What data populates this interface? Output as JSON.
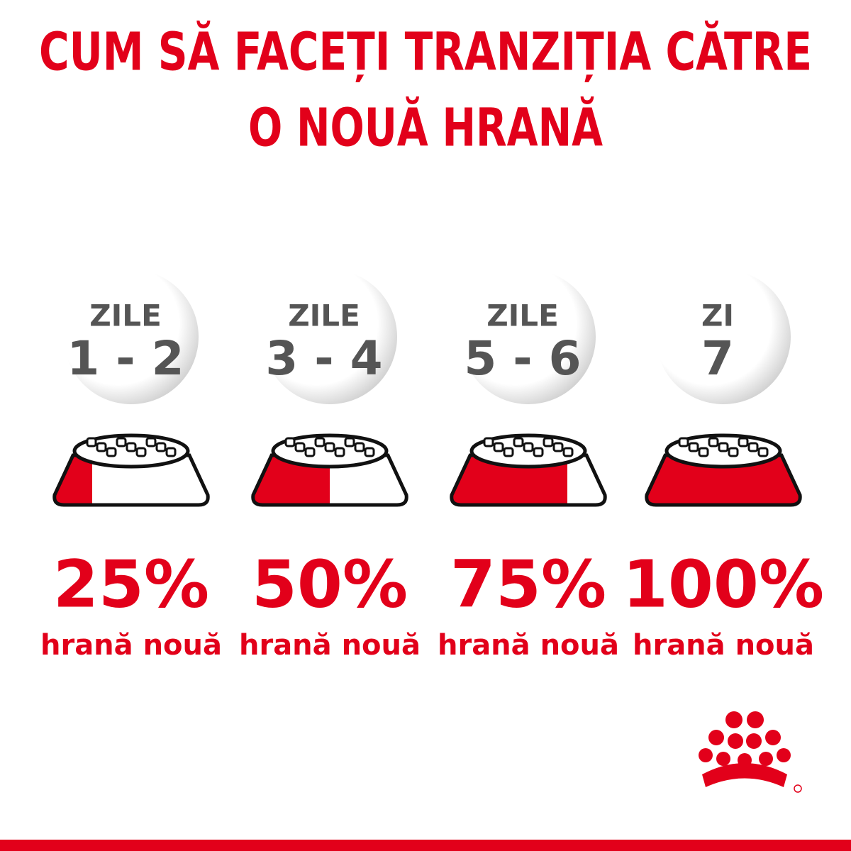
{
  "header": {
    "title_lines": [
      "CUM SĂ FACEȚI TRANZIȚIA CĂTRE",
      "O NOUĂ HRANĂ"
    ]
  },
  "steps": [
    {
      "period_label": "ZILE",
      "period": "1 - 2",
      "share": {
        "value": 25,
        "label": "25%"
      },
      "caption": "hrană nouă"
    },
    {
      "period_label": "ZILE",
      "period": "3 - 4",
      "share": {
        "value": 50,
        "label": "50%"
      },
      "caption": "hrană nouă"
    },
    {
      "period_label": "ZILE",
      "period": "5 - 6",
      "share": {
        "value": 75,
        "label": "75%"
      },
      "caption": "hrană nouă"
    },
    {
      "period_label": "ZI",
      "period": "7",
      "share": {
        "value": 100,
        "label": "100%"
      },
      "caption": "hrană nouă"
    }
  ]
}
